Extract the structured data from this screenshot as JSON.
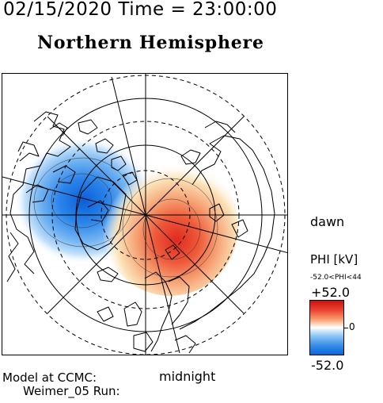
{
  "header": {
    "datetime": "02/15/2020 Time = 23:00:00",
    "title": "Northern Hemisphere"
  },
  "map": {
    "projection": "polar-stereographic",
    "hemisphere": "northern",
    "orientation": {
      "bottom": "midnight",
      "right": "dawn"
    },
    "overlays": [
      "latitude-circles",
      "meridian-grid",
      "coastlines",
      "potential-contours"
    ]
  },
  "labels": {
    "dawn": "dawn",
    "midnight": "midnight"
  },
  "colorbar": {
    "title": "PHI [kV]",
    "range_text": "-52.0<PHI<44",
    "max_label": "+52.0",
    "mid_label": "0",
    "min_label": "-52.0",
    "min": -52.0,
    "max": 52.0,
    "colors": {
      "positive": "#cc1111",
      "zero": "#ffffff",
      "negative": "#0a66dd"
    }
  },
  "footer": {
    "model_line1": "Model at CCMC:",
    "model_line2": "Weimer_05 Run:"
  }
}
